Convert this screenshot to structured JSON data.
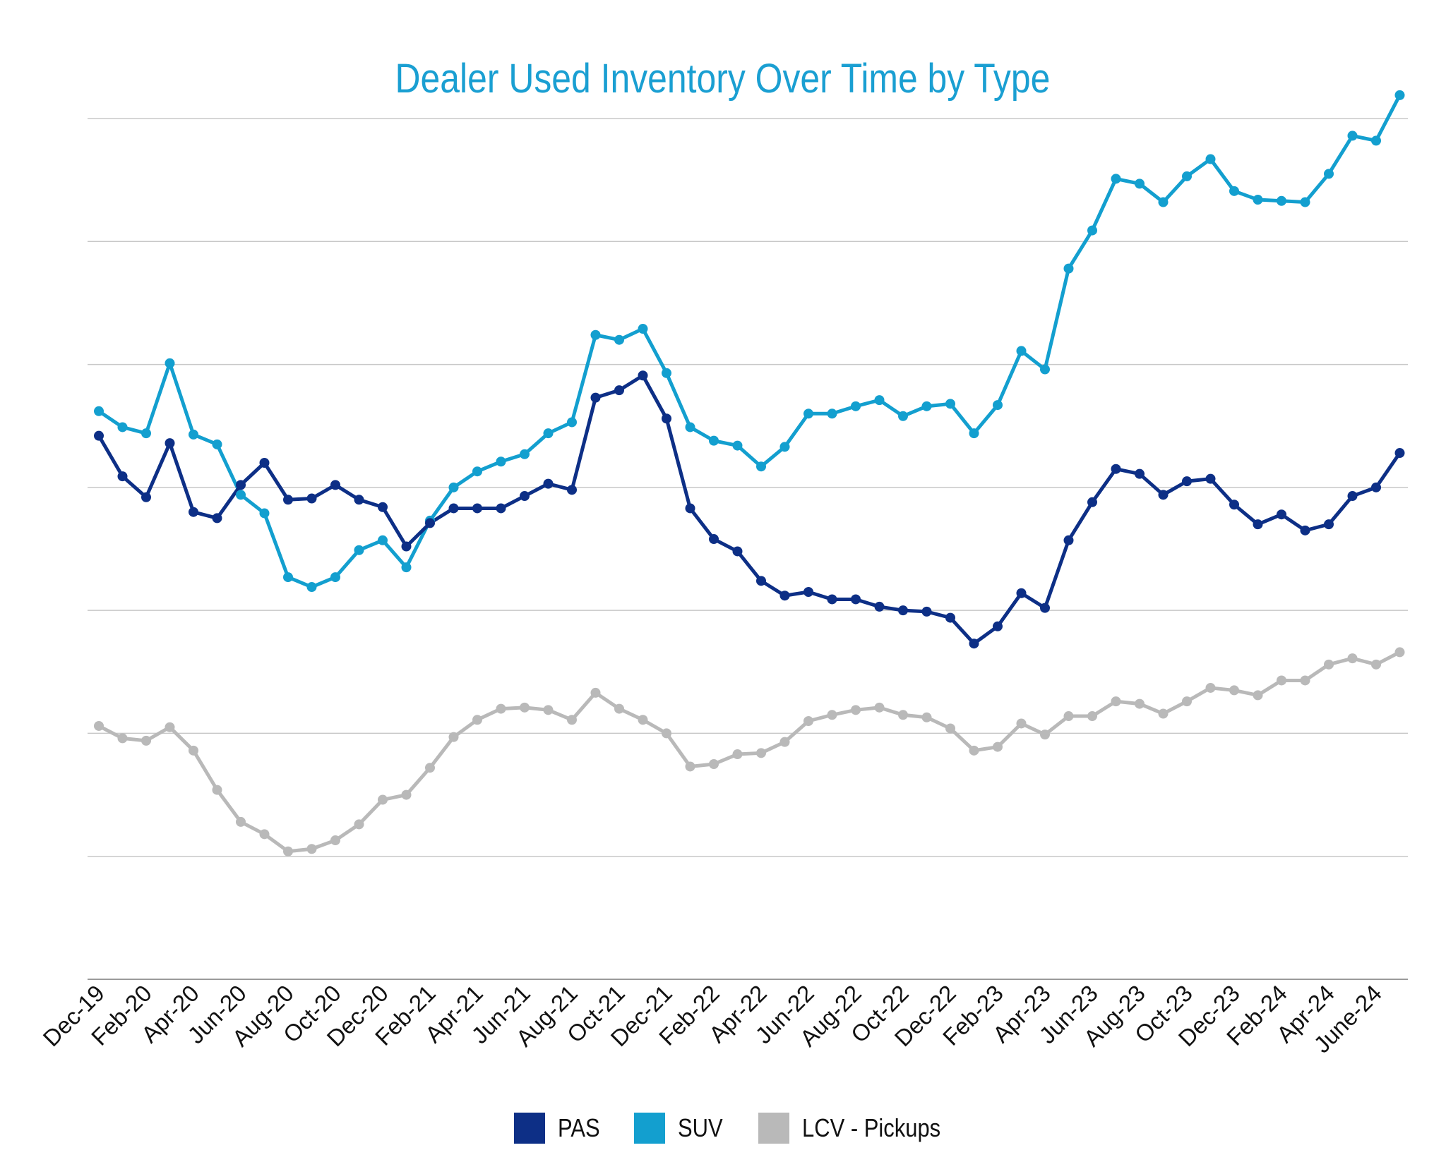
{
  "chart_data": {
    "type": "line",
    "title": "Dealer Used Inventory Over Time by Type",
    "xlabel": "",
    "ylabel": "",
    "ylim": [
      0,
      7
    ],
    "grid": true,
    "legend_position": "bottom-center",
    "tick_labels": [
      "Dec-19",
      "Feb-20",
      "Apr-20",
      "Jun-20",
      "Aug-20",
      "Oct-20",
      "Dec-20",
      "Feb-21",
      "Apr-21",
      "Jun-21",
      "Aug-21",
      "Oct-21",
      "Dec-21",
      "Feb-22",
      "Apr-22",
      "Jun-22",
      "Aug-22",
      "Oct-22",
      "Dec-22",
      "Feb-23",
      "Apr-23",
      "Jun-23",
      "Aug-23",
      "Oct-23",
      "Dec-23",
      "Feb-24",
      "Apr-24",
      "June-24"
    ],
    "x": [
      "Dec-19",
      "Jan-20",
      "Feb-20",
      "Mar-20",
      "Apr-20",
      "May-20",
      "Jun-20",
      "Jul-20",
      "Aug-20",
      "Sep-20",
      "Oct-20",
      "Nov-20",
      "Dec-20",
      "Jan-21",
      "Feb-21",
      "Mar-21",
      "Apr-21",
      "May-21",
      "Jun-21",
      "Jul-21",
      "Aug-21",
      "Sep-21",
      "Oct-21",
      "Nov-21",
      "Dec-21",
      "Jan-22",
      "Feb-22",
      "Mar-22",
      "Apr-22",
      "May-22",
      "Jun-22",
      "Jul-22",
      "Aug-22",
      "Sep-22",
      "Oct-22",
      "Nov-22",
      "Dec-22",
      "Jan-23",
      "Feb-23",
      "Mar-23",
      "Apr-23",
      "May-23",
      "Jun-23",
      "Jul-23",
      "Aug-23",
      "Sep-23",
      "Oct-23",
      "Nov-23",
      "Dec-23",
      "Jan-24",
      "Feb-24",
      "Mar-24",
      "Apr-24",
      "May-24",
      "June-24",
      "Jul-24"
    ],
    "series": [
      {
        "name": "PAS",
        "color": "#0d2f86",
        "values": [
          4.42,
          4.09,
          3.92,
          4.36,
          3.8,
          3.75,
          4.02,
          4.2,
          3.9,
          3.91,
          4.02,
          3.9,
          3.84,
          3.52,
          3.71,
          3.83,
          3.83,
          3.83,
          3.93,
          4.03,
          3.98,
          4.73,
          4.79,
          4.91,
          4.56,
          3.83,
          3.58,
          3.48,
          3.24,
          3.12,
          3.15,
          3.09,
          3.09,
          3.03,
          3.0,
          2.99,
          2.94,
          2.73,
          2.87,
          3.14,
          3.02,
          3.57,
          3.88,
          4.15,
          4.11,
          3.94,
          4.05,
          4.07,
          3.86,
          3.7,
          3.78,
          3.65,
          3.7,
          3.93,
          4.0,
          4.28
        ]
      },
      {
        "name": "SUV",
        "color": "#139fcf",
        "values": [
          4.62,
          4.49,
          4.44,
          5.01,
          4.43,
          4.35,
          3.94,
          3.79,
          3.27,
          3.19,
          3.27,
          3.49,
          3.57,
          3.35,
          3.73,
          4.0,
          4.13,
          4.21,
          4.27,
          4.44,
          4.53,
          5.24,
          5.2,
          5.29,
          4.93,
          4.49,
          4.38,
          4.34,
          4.17,
          4.33,
          4.6,
          4.6,
          4.66,
          4.71,
          4.58,
          4.66,
          4.68,
          4.44,
          4.67,
          5.11,
          4.96,
          5.78,
          6.09,
          6.51,
          6.47,
          6.32,
          6.53,
          6.67,
          6.41,
          6.34,
          6.33,
          6.32,
          6.55,
          6.86,
          6.82,
          7.19
        ]
      },
      {
        "name": "LCV - Pickups",
        "color": "#b9b9b9",
        "values": [
          2.06,
          1.96,
          1.94,
          2.05,
          1.86,
          1.54,
          1.28,
          1.18,
          1.04,
          1.06,
          1.13,
          1.26,
          1.46,
          1.5,
          1.72,
          1.97,
          2.11,
          2.2,
          2.21,
          2.19,
          2.11,
          2.33,
          2.2,
          2.11,
          2.0,
          1.73,
          1.75,
          1.83,
          1.84,
          1.93,
          2.1,
          2.15,
          2.19,
          2.21,
          2.15,
          2.13,
          2.04,
          1.86,
          1.89,
          2.08,
          1.99,
          2.14,
          2.14,
          2.26,
          2.24,
          2.16,
          2.26,
          2.37,
          2.35,
          2.31,
          2.43,
          2.43,
          2.56,
          2.61,
          2.56,
          2.66
        ]
      }
    ]
  }
}
